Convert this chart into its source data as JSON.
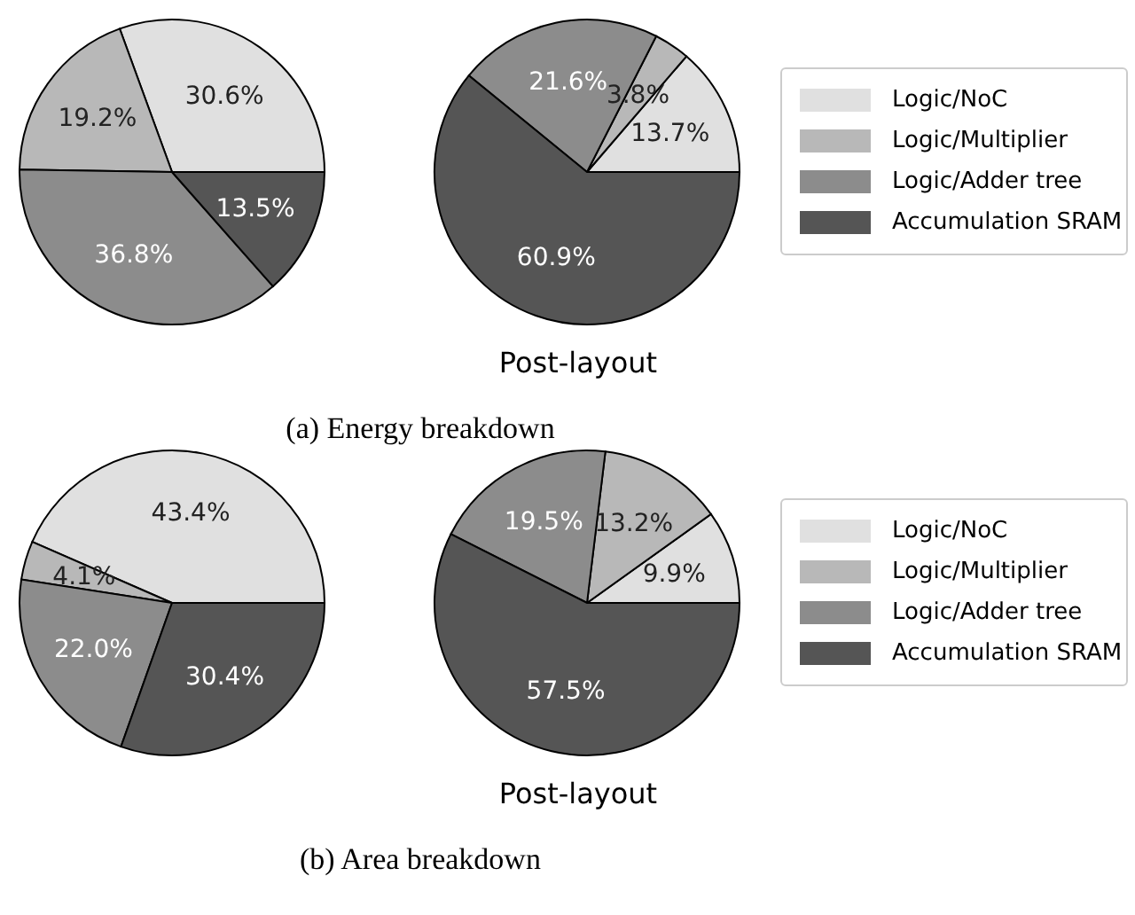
{
  "chart_data": [
    {
      "type": "pie",
      "categories": [
        "Logic/NoC",
        "Logic/Multiplier",
        "Logic/Adder tree",
        "Accumulation SRAM"
      ],
      "legend": "right",
      "annotations": [
        "(a) Energy breakdown"
      ],
      "series": [
        {
          "values": [
            30.6,
            19.2,
            36.8,
            13.5
          ],
          "colors": [
            "#e0e0e0",
            "#b8b8b8",
            "#8c8c8c",
            "#555555"
          ],
          "value_labels": [
            "30.6%",
            "19.2%",
            "36.8%",
            "13.5%"
          ]
        },
        {
          "name": "Post-layout",
          "values": [
            13.7,
            3.8,
            21.6,
            60.9
          ],
          "colors": [
            "#e0e0e0",
            "#b8b8b8",
            "#8c8c8c",
            "#555555"
          ],
          "value_labels": [
            "13.7%",
            "3.8%",
            "21.6%",
            "60.9%"
          ]
        }
      ]
    },
    {
      "type": "pie",
      "categories": [
        "Logic/NoC",
        "Logic/Multiplier",
        "Logic/Adder tree",
        "Accumulation SRAM"
      ],
      "legend": "right",
      "annotations": [
        "(b) Area breakdown"
      ],
      "series": [
        {
          "values": [
            43.4,
            4.1,
            22.0,
            30.4
          ],
          "colors": [
            "#e0e0e0",
            "#b8b8b8",
            "#8c8c8c",
            "#555555"
          ],
          "value_labels": [
            "43.4%",
            "4.1%",
            "22.0%",
            "30.4%"
          ]
        },
        {
          "name": "Post-layout",
          "values": [
            9.9,
            13.2,
            19.5,
            57.5
          ],
          "colors": [
            "#e0e0e0",
            "#b8b8b8",
            "#8c8c8c",
            "#555555"
          ],
          "value_labels": [
            "9.9%",
            "13.2%",
            "19.5%",
            "57.5%"
          ]
        }
      ]
    }
  ]
}
